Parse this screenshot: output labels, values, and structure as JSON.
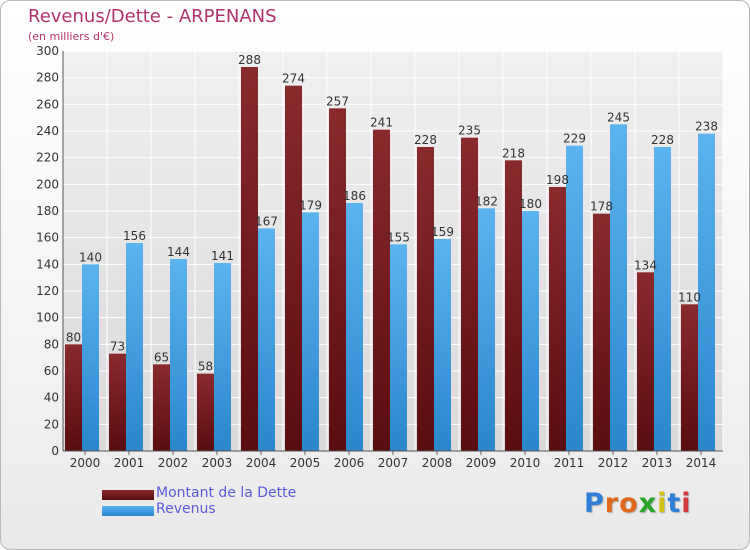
{
  "title": "Revenus/Dette - ARPENANS",
  "subtitle": "(en milliers d'€)",
  "brand": {
    "letters": [
      "P",
      "r",
      "o",
      "x",
      "i",
      "t",
      "i"
    ],
    "colors": [
      "#2f7fd8",
      "#e0671e",
      "#e0671e",
      "#2aa52a",
      "#d2c218",
      "#2f7fd8",
      "#d23a3a"
    ]
  },
  "chart_data": {
    "type": "bar",
    "categories": [
      "2000",
      "2001",
      "2002",
      "2003",
      "2004",
      "2005",
      "2006",
      "2007",
      "2008",
      "2009",
      "2010",
      "2011",
      "2012",
      "2013",
      "2014"
    ],
    "series": [
      {
        "name": "Montant de la Dette",
        "color": "#7a1f22",
        "values": [
          80,
          73,
          65,
          58,
          288,
          274,
          257,
          241,
          228,
          235,
          218,
          198,
          178,
          134,
          110
        ],
        "labels": [
          "80",
          "73",
          "65",
          "58",
          "288",
          "274",
          "257",
          "241",
          "228",
          "235",
          "218",
          "198",
          "178",
          "134",
          "110"
        ]
      },
      {
        "name": "Revenus",
        "color": "#4aa3e6",
        "values": [
          140,
          156,
          144,
          141,
          167,
          179,
          186,
          155,
          159,
          182,
          180,
          229,
          245,
          228,
          238
        ],
        "labels": [
          "140",
          "156",
          "144",
          "141",
          "167",
          "179",
          "186",
          "155",
          "159",
          "182",
          "180",
          "229",
          "245",
          "228",
          "238"
        ]
      }
    ],
    "ylim": [
      0,
      300
    ],
    "yticks": [
      "0",
      "20",
      "40",
      "60",
      "80",
      "100",
      "120",
      "140",
      "160",
      "180",
      "200",
      "220",
      "240",
      "260",
      "280",
      "300"
    ],
    "grid": true,
    "legend": "bottom-left"
  }
}
